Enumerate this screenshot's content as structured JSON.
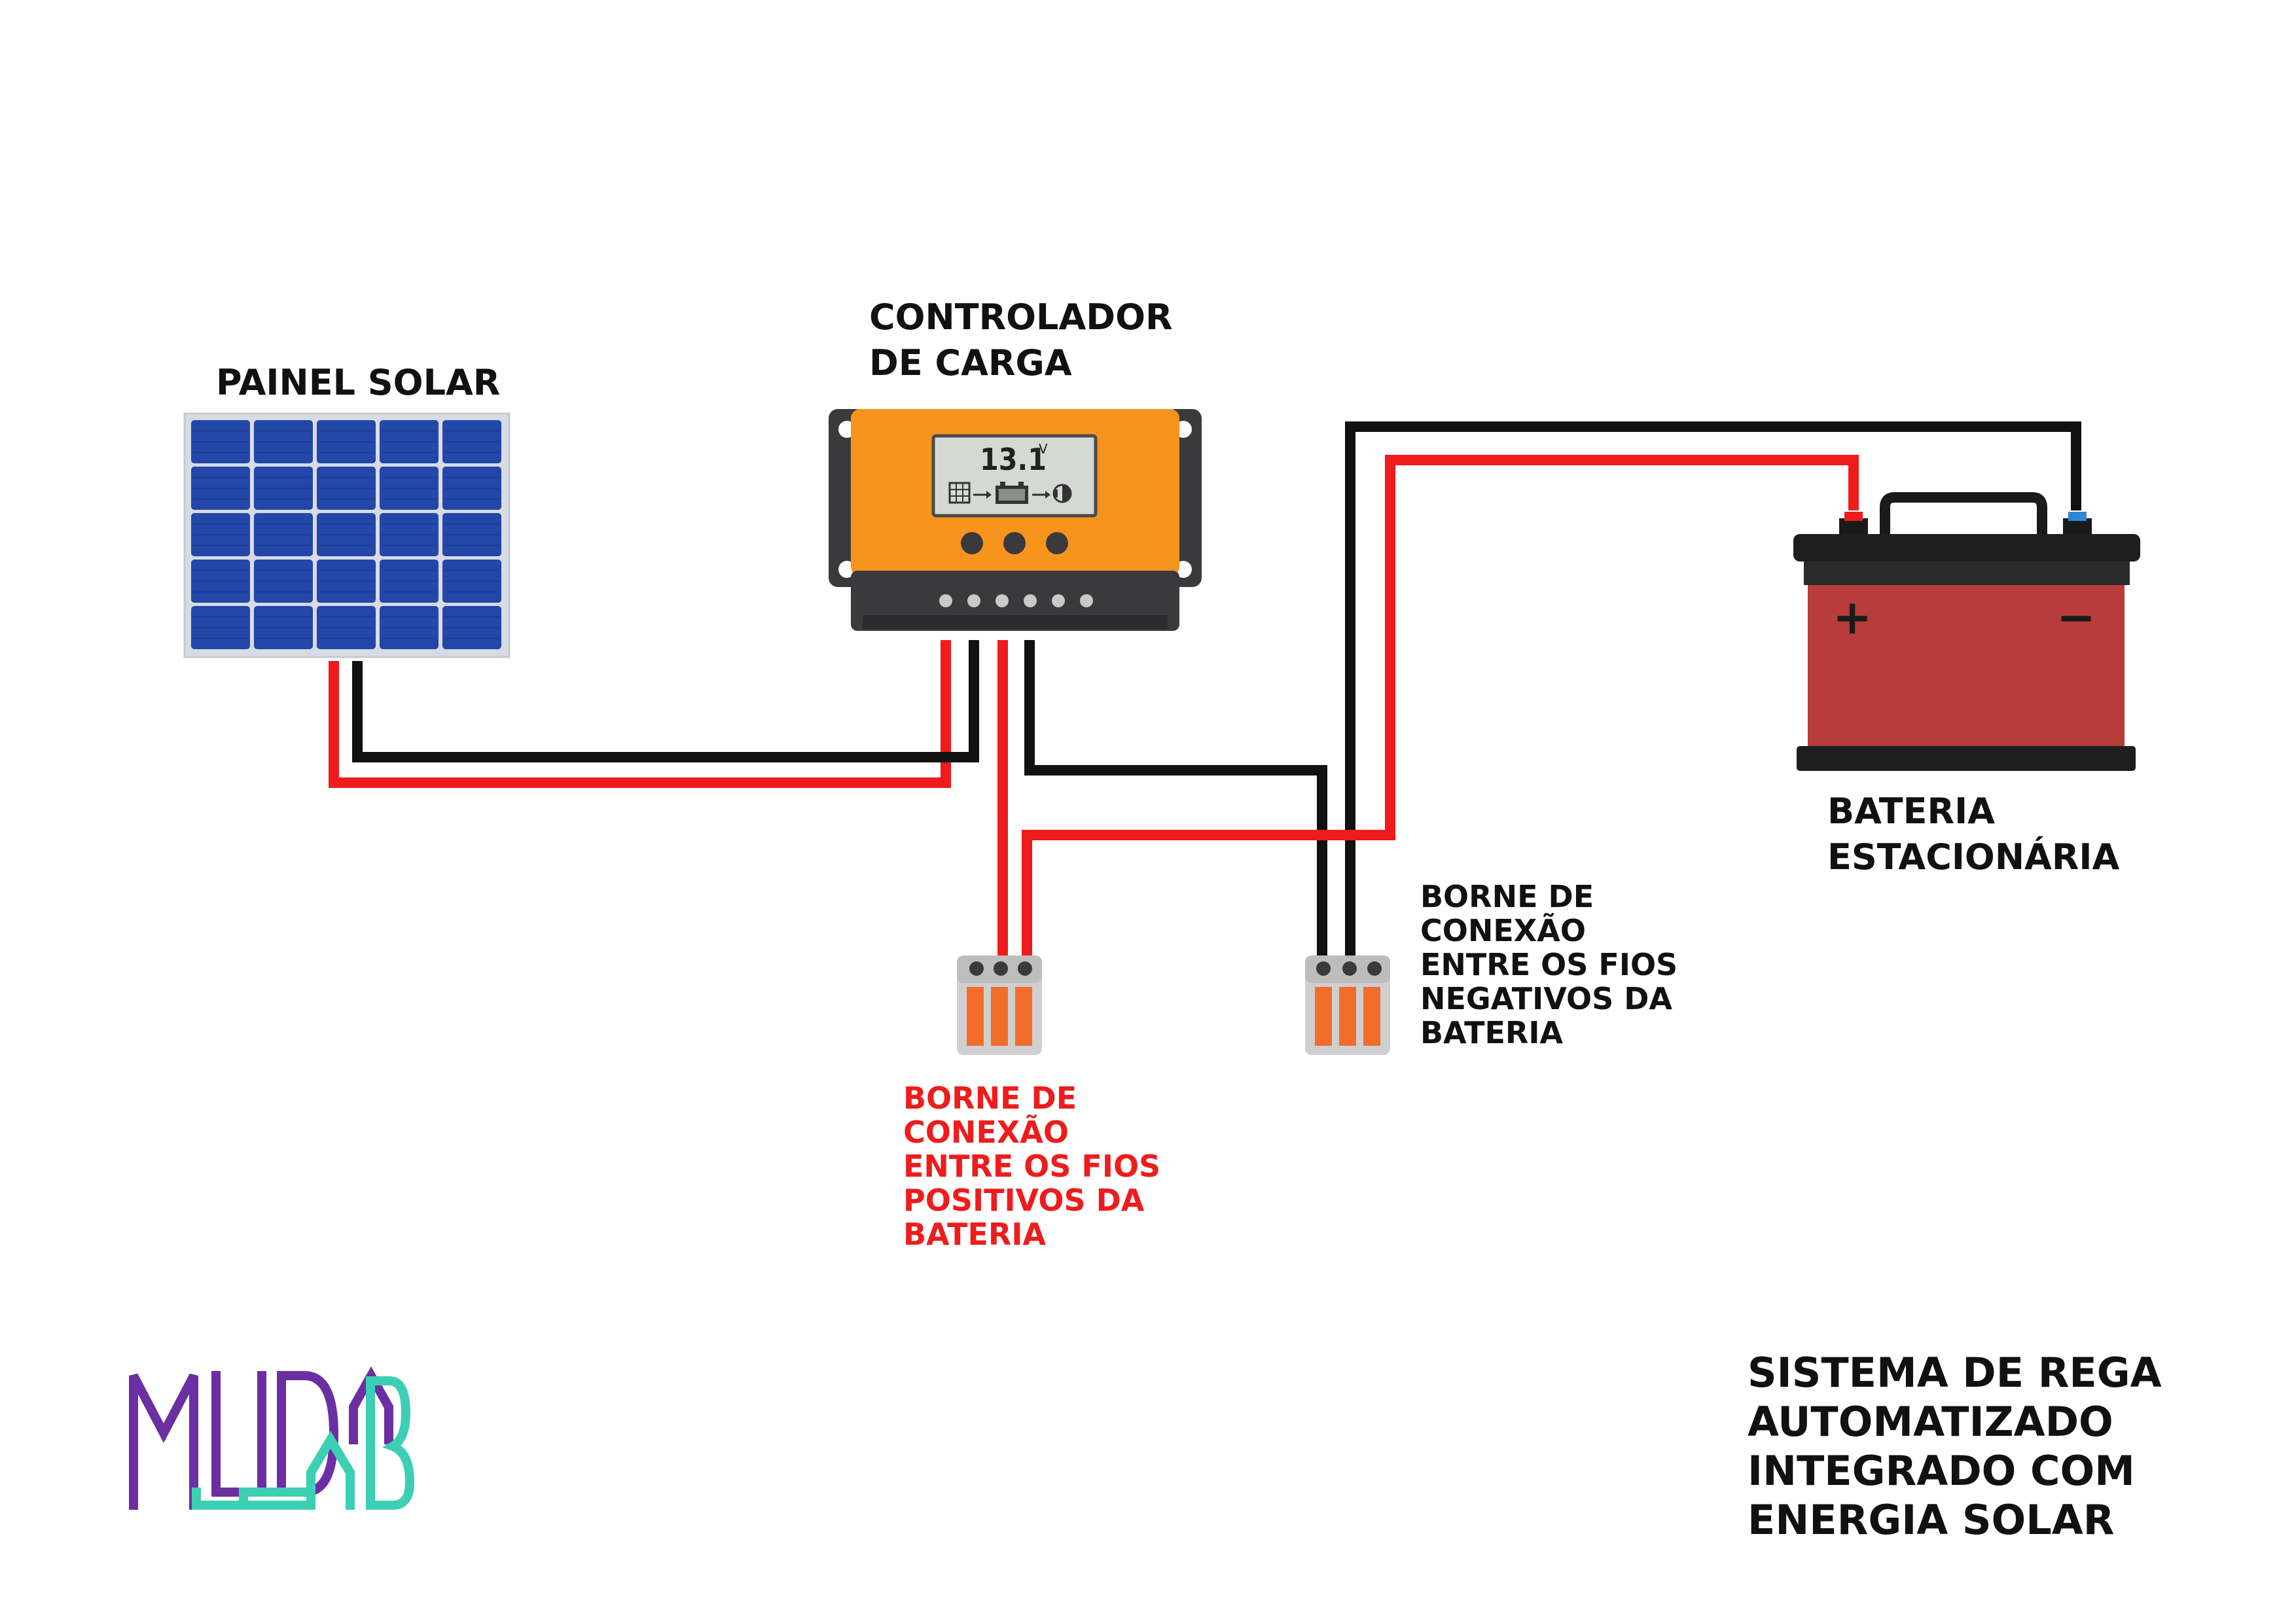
{
  "labels": {
    "solar_panel": "PAINEL SOLAR",
    "controller": [
      "CONTROLADOR",
      "DE CARGA"
    ],
    "battery": [
      "BATERIA",
      "ESTACIONÁRIA"
    ],
    "terminal_positive": [
      "BORNE DE",
      "CONEXÃO",
      "ENTRE OS FIOS",
      "POSITIVOS DA",
      "BATERIA"
    ],
    "terminal_negative": [
      "BORNE DE",
      "CONEXÃO",
      "ENTRE OS FIOS",
      "NEGATIVOS DA",
      "BATERIA"
    ],
    "title": [
      "SISTEMA DE REGA",
      "AUTOMATIZADO",
      "INTEGRADO COM",
      "ENERGIA SOLAR"
    ]
  },
  "controller_display": {
    "voltage": "13.1",
    "unit": "V"
  },
  "battery_symbols": {
    "positive": "+",
    "negative": "−"
  },
  "logo": {
    "text": "MUDALAB",
    "color_purple": "#6b2fa3",
    "color_teal": "#3ccfb4"
  },
  "colors": {
    "wire_positive": "#ee1c1c",
    "wire_negative": "#111111",
    "panel_cell": "#2347a8",
    "controller_body": "#f7941d",
    "battery_body": "#b83c3c",
    "terminal_lever": "#f26d2a",
    "label_positive_text": "#ee1c1c"
  }
}
